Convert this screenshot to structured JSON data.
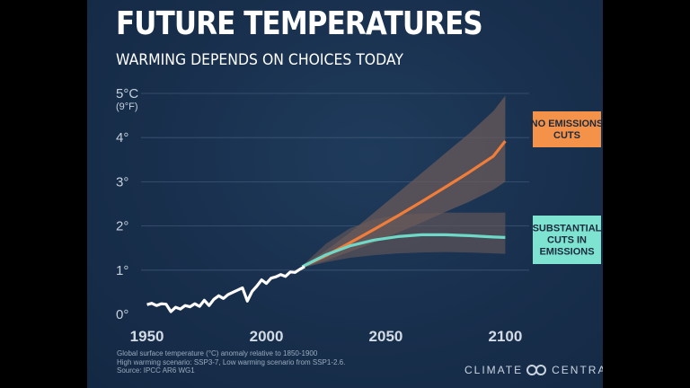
{
  "header": {
    "title": "FUTURE TEMPERATURES",
    "subtitle": "WARMING DEPENDS ON CHOICES TODAY"
  },
  "chart_data": {
    "type": "line",
    "xlim": [
      1940,
      2110
    ],
    "ylim": [
      0,
      5
    ],
    "x_ticks": [
      1950,
      2000,
      2050,
      2100
    ],
    "y_ticks": [
      {
        "value": 0,
        "label": "0°"
      },
      {
        "value": 1,
        "label": "1°"
      },
      {
        "value": 2,
        "label": "2°"
      },
      {
        "value": 3,
        "label": "3°"
      },
      {
        "value": 4,
        "label": "4°"
      },
      {
        "value": 5,
        "label": "5°C"
      }
    ],
    "y_top_sublabel": "(9°F)",
    "grid": true,
    "historical": {
      "color": "#ffffff",
      "points": [
        [
          1950,
          0.22
        ],
        [
          1952,
          0.25
        ],
        [
          1954,
          0.2
        ],
        [
          1956,
          0.24
        ],
        [
          1958,
          0.23
        ],
        [
          1960,
          0.06
        ],
        [
          1962,
          0.16
        ],
        [
          1964,
          0.12
        ],
        [
          1966,
          0.2
        ],
        [
          1968,
          0.17
        ],
        [
          1970,
          0.24
        ],
        [
          1972,
          0.18
        ],
        [
          1974,
          0.32
        ],
        [
          1976,
          0.2
        ],
        [
          1978,
          0.34
        ],
        [
          1980,
          0.42
        ],
        [
          1982,
          0.36
        ],
        [
          1984,
          0.45
        ],
        [
          1986,
          0.5
        ],
        [
          1988,
          0.55
        ],
        [
          1990,
          0.6
        ],
        [
          1992,
          0.3
        ],
        [
          1994,
          0.52
        ],
        [
          1996,
          0.64
        ],
        [
          1998,
          0.78
        ],
        [
          2000,
          0.7
        ],
        [
          2002,
          0.82
        ],
        [
          2004,
          0.85
        ],
        [
          2006,
          0.9
        ],
        [
          2008,
          0.86
        ],
        [
          2010,
          0.96
        ],
        [
          2012,
          0.95
        ],
        [
          2014,
          1.02
        ],
        [
          2016,
          1.08
        ]
      ]
    },
    "scenarios": [
      {
        "label_lines": [
          "NO EMISSIONS",
          "CUTS"
        ],
        "color": "#f07d3a",
        "label_bg": "#f5924a",
        "points": [
          [
            2015,
            1.08
          ],
          [
            2025,
            1.33
          ],
          [
            2035,
            1.62
          ],
          [
            2045,
            1.92
          ],
          [
            2055,
            2.23
          ],
          [
            2065,
            2.55
          ],
          [
            2075,
            2.88
          ],
          [
            2085,
            3.22
          ],
          [
            2095,
            3.58
          ],
          [
            2100,
            3.92
          ]
        ],
        "upper": [
          [
            2015,
            1.1
          ],
          [
            2025,
            1.45
          ],
          [
            2035,
            1.85
          ],
          [
            2045,
            2.3
          ],
          [
            2055,
            2.75
          ],
          [
            2065,
            3.2
          ],
          [
            2075,
            3.65
          ],
          [
            2085,
            4.1
          ],
          [
            2095,
            4.6
          ],
          [
            2100,
            4.95
          ]
        ],
        "lower": [
          [
            2015,
            1.05
          ],
          [
            2025,
            1.22
          ],
          [
            2035,
            1.42
          ],
          [
            2045,
            1.62
          ],
          [
            2055,
            1.85
          ],
          [
            2065,
            2.08
          ],
          [
            2075,
            2.32
          ],
          [
            2085,
            2.55
          ],
          [
            2095,
            2.82
          ],
          [
            2100,
            3.0
          ]
        ]
      },
      {
        "label_lines": [
          "SUBSTANTIAL",
          "CUTS IN",
          "EMISSIONS"
        ],
        "color": "#6fd9c8",
        "label_bg": "#7fe3d2",
        "points": [
          [
            2015,
            1.08
          ],
          [
            2025,
            1.35
          ],
          [
            2035,
            1.55
          ],
          [
            2045,
            1.68
          ],
          [
            2055,
            1.76
          ],
          [
            2065,
            1.8
          ],
          [
            2075,
            1.8
          ],
          [
            2085,
            1.78
          ],
          [
            2095,
            1.75
          ],
          [
            2100,
            1.74
          ]
        ],
        "upper": [
          [
            2015,
            1.1
          ],
          [
            2025,
            1.6
          ],
          [
            2035,
            1.95
          ],
          [
            2045,
            2.15
          ],
          [
            2055,
            2.25
          ],
          [
            2065,
            2.28
          ],
          [
            2075,
            2.3
          ],
          [
            2085,
            2.3
          ],
          [
            2095,
            2.3
          ],
          [
            2100,
            2.3
          ]
        ],
        "lower": [
          [
            2015,
            1.05
          ],
          [
            2025,
            1.18
          ],
          [
            2035,
            1.28
          ],
          [
            2045,
            1.34
          ],
          [
            2055,
            1.38
          ],
          [
            2065,
            1.4
          ],
          [
            2075,
            1.41
          ],
          [
            2085,
            1.4
          ],
          [
            2095,
            1.38
          ],
          [
            2100,
            1.37
          ]
        ]
      }
    ],
    "bands_color": "#6a5a5a"
  },
  "footnote": {
    "line1": "Global surface temperature (°C) anomaly relative to 1850-1900",
    "line2": "High warming scenario: SSP3-7, Low warming scenario from SSP1-2.6.",
    "line3": "Source: IPCC AR6 WG1"
  },
  "brand": {
    "left": "CLIMATE",
    "right": "CENTRAL",
    "logo_icon": "infinity-rings-icon"
  }
}
